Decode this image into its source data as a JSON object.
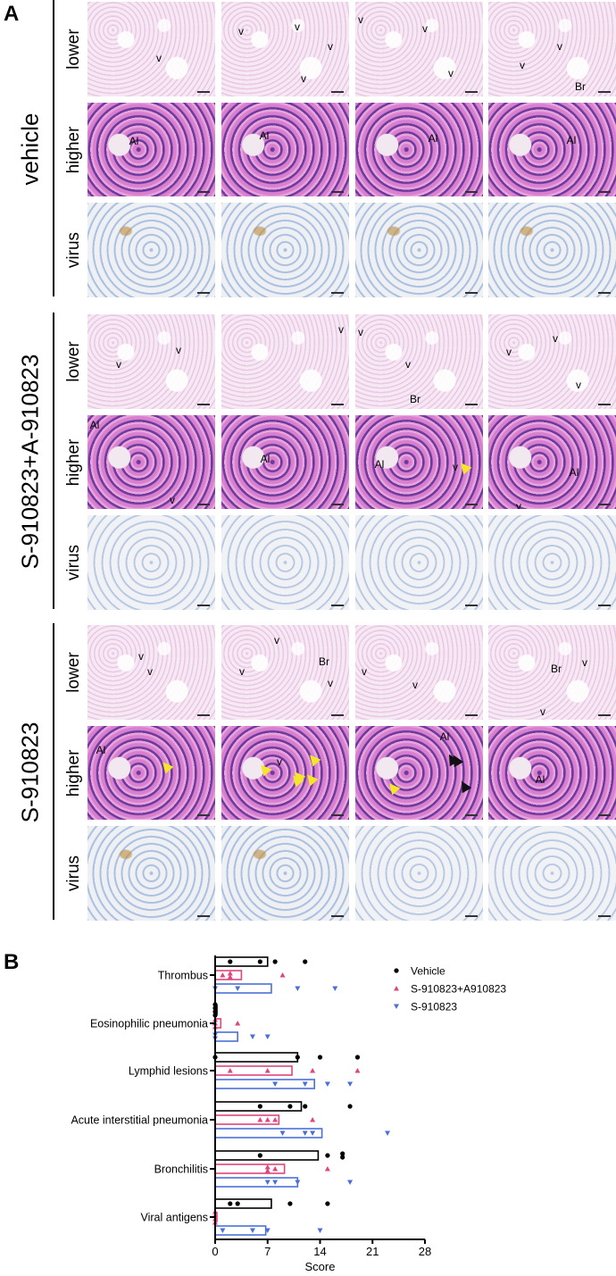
{
  "panel_a": {
    "letter": "A",
    "groups": [
      {
        "label": "vehicle",
        "rows": [
          {
            "label": "lower",
            "annotations": [
              [
                "v"
              ],
              [
                "v",
                "v",
                "v",
                "v"
              ],
              [
                "v",
                "v",
                "v"
              ],
              [
                "v",
                "v",
                "Br"
              ]
            ]
          },
          {
            "label": "higher",
            "annotations": [
              [
                "Al"
              ],
              [
                "Al"
              ],
              [
                "Al"
              ],
              [
                "Al"
              ]
            ]
          },
          {
            "label": "virus",
            "annotations": [
              [],
              [],
              [],
              []
            ]
          }
        ]
      },
      {
        "label": "S-910823+A-910823",
        "rows": [
          {
            "label": "lower",
            "annotations": [
              [
                "v",
                "v"
              ],
              [
                "v"
              ],
              [
                "v",
                "v",
                "Br"
              ],
              [
                "v",
                "v",
                "v"
              ]
            ]
          },
          {
            "label": "higher",
            "annotations": [
              [
                "Al",
                "v"
              ],
              [
                "Al"
              ],
              [
                "Al",
                "v"
              ],
              [
                "Al",
                "v"
              ]
            ]
          },
          {
            "label": "virus",
            "annotations": [
              [],
              [],
              [],
              []
            ]
          }
        ]
      },
      {
        "label": "S-910823",
        "rows": [
          {
            "label": "lower",
            "annotations": [
              [
                "v",
                "v"
              ],
              [
                "v",
                "v",
                "Br",
                "v"
              ],
              [
                "v",
                "v"
              ],
              [
                "Br",
                "v",
                "v"
              ]
            ]
          },
          {
            "label": "higher",
            "annotations": [
              [
                "Al"
              ],
              [
                "v"
              ],
              [
                "Al"
              ],
              [
                "Al"
              ]
            ]
          },
          {
            "label": "virus",
            "annotations": [
              [],
              [],
              [],
              []
            ]
          }
        ]
      }
    ]
  },
  "panel_b": {
    "letter": "B"
  },
  "chart_data": {
    "type": "bar",
    "orientation": "horizontal",
    "xlabel": "Score",
    "xlim": [
      0,
      28
    ],
    "xticks": [
      "0",
      "7",
      "14",
      "21",
      "28"
    ],
    "categories": [
      "Thrombus",
      "Eosinophilic pneumonia",
      "Lymphid lesions",
      "Acute interstitial pneumonia",
      "Bronchilitis",
      "Viral antigens"
    ],
    "legend_position": "top-right",
    "series": [
      {
        "name": "Vehicle",
        "color": "#000000",
        "marker": "circle",
        "values": [
          7,
          0,
          11,
          11.5,
          13.75,
          7.5
        ],
        "points": [
          [
            2,
            6,
            8,
            12
          ],
          [
            0,
            0,
            0,
            0
          ],
          [
            0,
            11,
            14,
            19
          ],
          [
            6,
            10,
            12,
            18
          ],
          [
            6,
            15,
            17,
            17
          ],
          [
            2,
            3,
            10,
            15
          ]
        ]
      },
      {
        "name": "S-910823+A910823",
        "color": "#e0457b",
        "marker": "triangle-up",
        "values": [
          3.5,
          0.75,
          10.25,
          8.5,
          9.25,
          0
        ],
        "points": [
          [
            1,
            2,
            2,
            9
          ],
          [
            0,
            0,
            0,
            3
          ],
          [
            2,
            7,
            13,
            19
          ],
          [
            6,
            7,
            8,
            13
          ],
          [
            7,
            7,
            8,
            15
          ],
          [
            0,
            0,
            0,
            0
          ]
        ]
      },
      {
        "name": "S-910823",
        "color": "#4a6fd8",
        "marker": "triangle-down",
        "values": [
          7.5,
          3,
          13.25,
          14.25,
          11,
          6.75
        ],
        "points": [
          [
            0,
            3,
            11,
            16
          ],
          [
            0,
            0,
            5,
            7
          ],
          [
            8,
            12,
            15,
            18
          ],
          [
            9,
            12,
            13,
            23
          ],
          [
            7,
            8,
            11,
            18
          ],
          [
            1,
            5,
            7,
            14
          ]
        ]
      }
    ]
  }
}
